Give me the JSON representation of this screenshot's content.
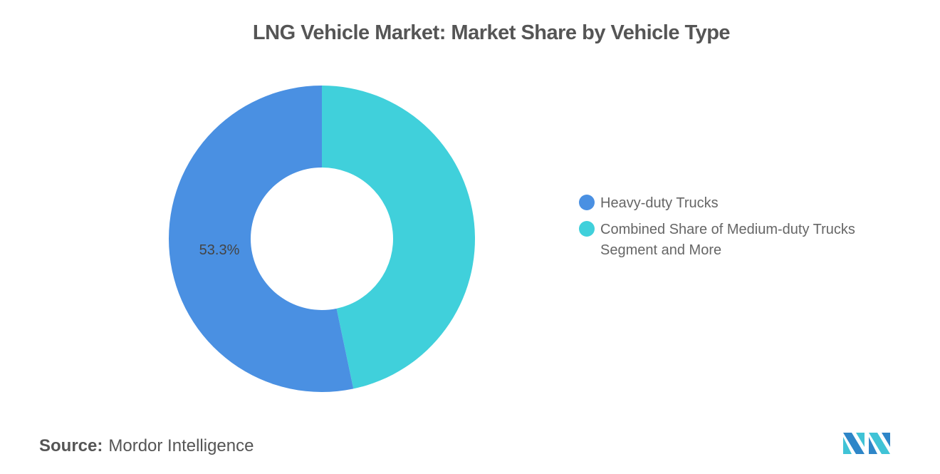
{
  "chart_data": {
    "type": "pie",
    "title": "LNG Vehicle Market: Market Share by Vehicle Type",
    "series": [
      {
        "name": "Heavy-duty Trucks",
        "value": 53.3,
        "color": "#4A90E2",
        "label": "53.3%"
      },
      {
        "name": "Combined Share of Medium-duty Trucks Segment and More",
        "value": 46.7,
        "color": "#40D0DB"
      }
    ],
    "donut": true,
    "legend": "right"
  },
  "source": {
    "label": "Source:",
    "value": "Mordor Intelligence"
  },
  "logo": {
    "text": "Mordor Intelligence"
  }
}
